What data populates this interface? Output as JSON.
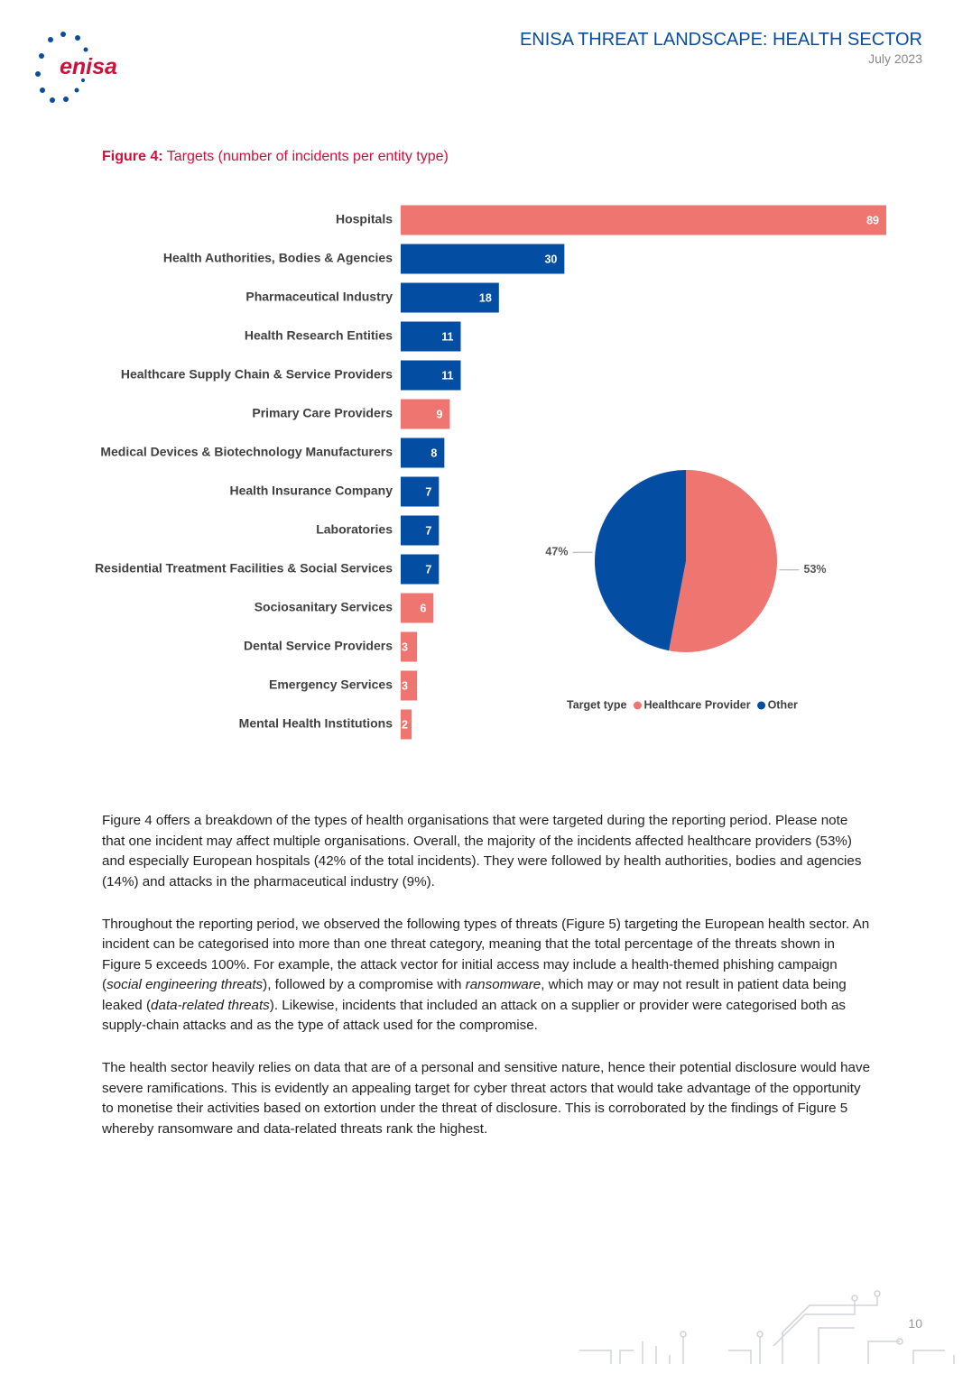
{
  "header": {
    "logo": "enisa",
    "title": "ENISA THREAT LANDSCAPE: HEALTH SECTOR",
    "date": "July 2023"
  },
  "figure": {
    "label": "Figure 4:",
    "caption": "Targets (number of incidents per entity type)"
  },
  "chart_data": [
    {
      "type": "bar",
      "orientation": "horizontal",
      "categories": [
        "Hospitals",
        "Health Authorities, Bodies & Agencies",
        "Pharmaceutical Industry",
        "Health Research Entities",
        "Healthcare Supply Chain & Service Providers",
        "Primary Care Providers",
        "Medical Devices & Biotechnology Manufacturers",
        "Health Insurance Company",
        "Laboratories",
        "Residential Treatment Facilities & Social Services",
        "Sociosanitary Services",
        "Dental Service Providers",
        "Emergency Services",
        "Mental Health Institutions"
      ],
      "values": [
        89,
        30,
        18,
        11,
        11,
        9,
        8,
        7,
        7,
        7,
        6,
        3,
        3,
        2
      ],
      "colors": [
        "#ef7670",
        "#034ea2",
        "#034ea2",
        "#034ea2",
        "#034ea2",
        "#ef7670",
        "#034ea2",
        "#034ea2",
        "#034ea2",
        "#034ea2",
        "#ef7670",
        "#ef7670",
        "#ef7670",
        "#ef7670"
      ]
    },
    {
      "type": "pie",
      "legend_title": "Target type",
      "categories": [
        "Healthcare Provider",
        "Other"
      ],
      "values": [
        53,
        47
      ],
      "value_labels": [
        "53%",
        "47%"
      ],
      "colors": [
        "#ef7670",
        "#034ea2"
      ]
    }
  ],
  "paragraphs": [
    [
      "Figure 4 offers a breakdown of the types of health organisations that were targeted during the reporting period. Please note that one incident may affect multiple organisations. Overall, the majority of the incidents affected healthcare providers (53%) and especially European hospitals (42% of the total incidents). They were followed by health authorities, bodies and agencies (14%) and attacks in the pharmaceutical industry (9%)."
    ],
    [
      "Throughout the reporting period, we observed the following types of threats (Figure 5) targeting the European health sector. An incident can be categorised into more than one threat category, meaning that the total percentage of the threats shown in Figure 5 exceeds 100%. For example, the attack vector for initial access may include a health-themed phishing campaign (",
      {
        "text": "social engineering threats",
        "style": "italic"
      },
      "), followed by a compromise with ",
      {
        "text": "ransomware",
        "style": "italic"
      },
      ", which may or may not result in patient data being leaked (",
      {
        "text": "data-related threats",
        "style": "italic"
      },
      "). Likewise, incidents that included an attack on a supplier or provider were categorised both as supply-chain attacks and as the type of attack used for the compromise."
    ],
    [
      "The health sector heavily relies on data that are of a personal and sensitive nature, hence their potential disclosure would have severe ramifications. This is evidently an appealing target for cyber threat actors that would take advantage of the opportunity to monetise their activities based on extortion under the threat of disclosure. This is corroborated by the findings of Figure 5 whereby ransomware and data-related threats rank the highest."
    ]
  ],
  "page_number": "10"
}
